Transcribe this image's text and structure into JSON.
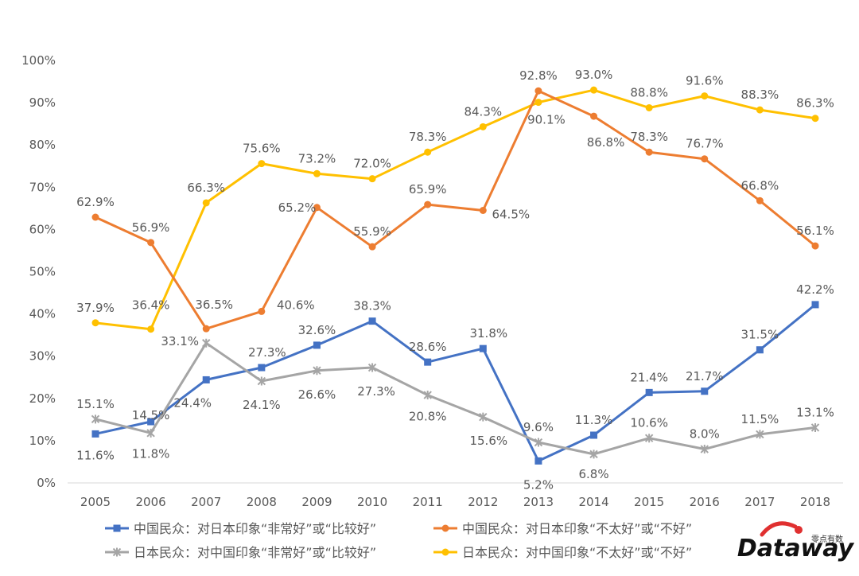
{
  "chart_data": {
    "type": "line",
    "x": [
      "2005",
      "2006",
      "2007",
      "2008",
      "2009",
      "2010",
      "2011",
      "2012",
      "2013",
      "2014",
      "2015",
      "2016",
      "2017",
      "2018"
    ],
    "y_ticks": [
      "0%",
      "10%",
      "20%",
      "30%",
      "40%",
      "50%",
      "60%",
      "70%",
      "80%",
      "90%",
      "100%"
    ],
    "ylim": [
      0,
      100
    ],
    "grid": false,
    "legend_position": "bottom",
    "series": [
      {
        "name": "中国民众：对日本印象“非常好”或“比较好”",
        "color": "#4472C4",
        "marker": "square",
        "values": [
          11.6,
          14.5,
          24.4,
          27.3,
          32.6,
          38.3,
          28.6,
          31.8,
          5.2,
          11.3,
          21.4,
          21.7,
          31.5,
          42.2
        ],
        "labels": [
          "11.6%",
          "14.5%",
          "24.4%",
          "27.3%",
          "32.6%",
          "38.3%",
          "28.6%",
          "31.8%",
          "5.2%",
          "11.3%",
          "21.4%",
          "21.7%",
          "31.5%",
          "42.2%"
        ]
      },
      {
        "name": "中国民众：对日本印象“不太好”或“不好”",
        "color": "#ED7D31",
        "marker": "circle",
        "values": [
          62.9,
          56.9,
          36.5,
          40.6,
          65.2,
          55.9,
          65.9,
          64.5,
          92.8,
          86.8,
          78.3,
          76.7,
          66.8,
          56.1
        ],
        "labels": [
          "62.9%",
          "56.9%",
          "36.5%",
          "40.6%",
          "65.2%",
          "55.9%",
          "65.9%",
          "64.5%",
          "92.8%",
          "86.8%",
          "78.3%",
          "76.7%",
          "66.8%",
          "56.1%"
        ]
      },
      {
        "name": "日本民众：对中国印象“非常好”或“比较好”",
        "color": "#A5A5A5",
        "marker": "star",
        "values": [
          15.1,
          11.8,
          33.1,
          24.1,
          26.6,
          27.3,
          20.8,
          15.6,
          9.6,
          6.8,
          10.6,
          8.0,
          11.5,
          13.1
        ],
        "labels": [
          "15.1%",
          "11.8%",
          "33.1%",
          "24.1%",
          "26.6%",
          "27.3%",
          "20.8%",
          "15.6%",
          "9.6%",
          "6.8%",
          "10.6%",
          "8.0%",
          "11.5%",
          "13.1%"
        ]
      },
      {
        "name": "日本民众：对中国印象“不太好”或“不好”",
        "color": "#FFC000",
        "marker": "circle",
        "values": [
          37.9,
          36.4,
          66.3,
          75.6,
          73.2,
          72.0,
          78.3,
          84.3,
          90.1,
          93.0,
          88.8,
          91.6,
          88.3,
          86.3
        ],
        "labels": [
          "37.9%",
          "36.4%",
          "66.3%",
          "75.6%",
          "73.2%",
          "72.0%",
          "78.3%",
          "84.3%",
          "90.1%",
          "93.0%",
          "88.8%",
          "91.6%",
          "88.3%",
          "86.3%"
        ]
      }
    ]
  },
  "logo": {
    "text": "Dataway",
    "subtitle": "零点有数"
  }
}
